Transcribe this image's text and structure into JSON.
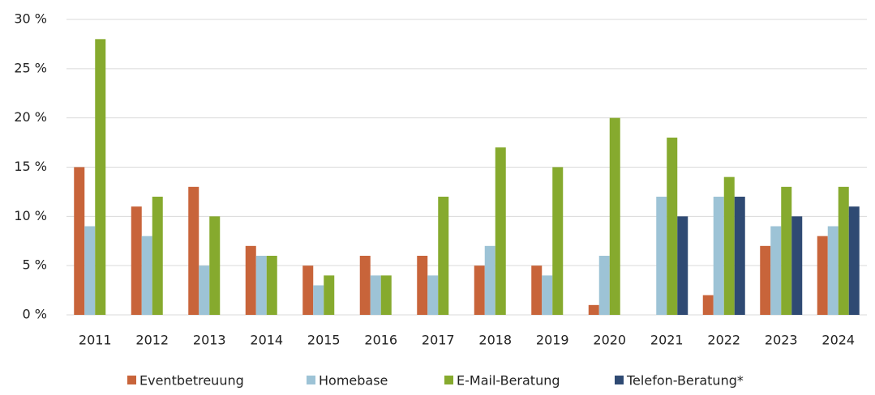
{
  "chart_data": {
    "type": "bar",
    "categories": [
      "2011",
      "2012",
      "2013",
      "2014",
      "2015",
      "2016",
      "2017",
      "2018",
      "2019",
      "2020",
      "2021",
      "2022",
      "2023",
      "2024"
    ],
    "series": [
      {
        "name": "Eventbetreuung",
        "color": "#c8643a",
        "values": [
          15,
          11,
          13,
          7,
          5,
          6,
          6,
          5,
          5,
          1,
          null,
          2,
          7,
          8
        ]
      },
      {
        "name": "Homebase",
        "color": "#9dc3d6",
        "values": [
          9,
          8,
          5,
          6,
          3,
          4,
          4,
          7,
          4,
          6,
          12,
          12,
          9,
          9
        ]
      },
      {
        "name": "E-Mail-Beratung",
        "color": "#86aa2e",
        "values": [
          28,
          12,
          10,
          6,
          4,
          4,
          12,
          17,
          15,
          20,
          18,
          14,
          13,
          13
        ]
      },
      {
        "name": "Telefon-Beratung*",
        "color": "#2f4a73",
        "values": [
          null,
          null,
          null,
          null,
          null,
          null,
          null,
          null,
          null,
          null,
          10,
          12,
          10,
          11
        ]
      }
    ],
    "ylim": [
      0,
      30
    ],
    "yticks": [
      {
        "value": 0,
        "label": "0 %"
      },
      {
        "value": 5,
        "label": "5 %"
      },
      {
        "value": 10,
        "label": "10 %"
      },
      {
        "value": 15,
        "label": "15 %"
      },
      {
        "value": 20,
        "label": "20 %"
      },
      {
        "value": 25,
        "label": "25 %"
      },
      {
        "value": 30,
        "label": "30 %"
      }
    ],
    "grid": true,
    "legend": "bottom"
  }
}
